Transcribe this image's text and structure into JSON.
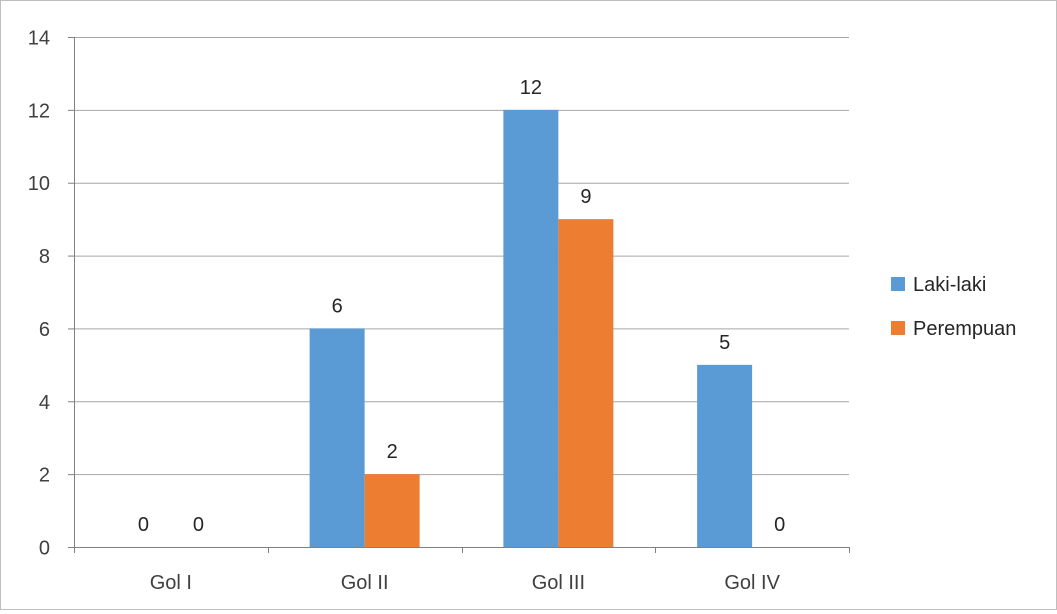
{
  "colors": {
    "series_1": "#5b9bd5",
    "series_2": "#ed7d31",
    "gridline": "#a6a6a6",
    "axis": "#808080"
  },
  "chart_data": {
    "type": "bar",
    "title": "",
    "xlabel": "",
    "ylabel": "",
    "categories": [
      "Gol  I",
      "Gol  II",
      "Gol  III",
      "Gol  IV"
    ],
    "series": [
      {
        "name": "Laki-laki",
        "values": [
          0,
          6,
          12,
          5
        ]
      },
      {
        "name": "Perempuan",
        "values": [
          0,
          2,
          9,
          0
        ]
      }
    ],
    "ylim": [
      0,
      14
    ],
    "yticks": [
      0,
      2,
      4,
      6,
      8,
      10,
      12,
      14
    ],
    "grid": true,
    "data_labels": true,
    "legend_position": "right"
  }
}
